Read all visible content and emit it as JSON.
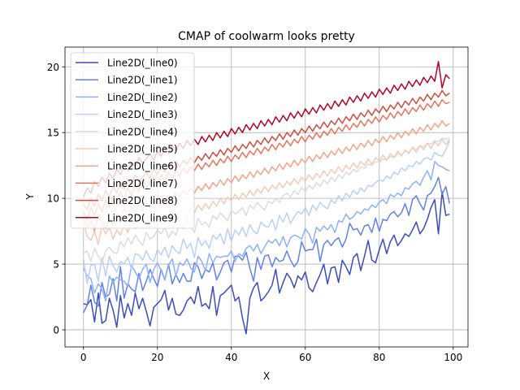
{
  "chart_data": {
    "type": "line",
    "title": "CMAP of coolwarm looks pretty",
    "xlabel": "X",
    "ylabel": "Y",
    "xlim": [
      -5,
      104
    ],
    "ylim": [
      -1.3,
      21.5
    ],
    "xticks": [
      0,
      20,
      40,
      60,
      80,
      100
    ],
    "yticks": [
      0,
      5,
      10,
      15,
      20
    ],
    "grid": true,
    "legend_position": "top-left",
    "x": [
      0,
      1,
      2,
      3,
      4,
      5,
      6,
      7,
      8,
      9,
      10,
      11,
      12,
      13,
      14,
      15,
      16,
      17,
      18,
      19,
      20,
      21,
      22,
      23,
      24,
      25,
      26,
      27,
      28,
      29,
      30,
      31,
      32,
      33,
      34,
      35,
      36,
      37,
      38,
      39,
      40,
      41,
      42,
      43,
      44,
      45,
      46,
      47,
      48,
      49,
      50,
      51,
      52,
      53,
      54,
      55,
      56,
      57,
      58,
      59,
      60,
      61,
      62,
      63,
      64,
      65,
      66,
      67,
      68,
      69,
      70,
      71,
      72,
      73,
      74,
      75,
      76,
      77,
      78,
      79,
      80,
      81,
      82,
      83,
      84,
      85,
      86,
      87,
      88,
      89,
      90,
      91,
      92,
      93,
      94,
      95,
      96,
      97,
      98,
      99
    ],
    "series": [
      {
        "name": "Line2D(_line0)",
        "color": "#3b4cc0",
        "values": [
          2.0,
          1.9,
          2.3,
          0.6,
          2.8,
          0.5,
          0.7,
          2.4,
          1.5,
          0.2,
          2.6,
          0.9,
          2.0,
          1.1,
          2.8,
          1.6,
          2.4,
          1.4,
          0.3,
          1.7,
          2.0,
          2.3,
          3.0,
          1.5,
          2.4,
          1.2,
          1.1,
          1.5,
          2.2,
          2.5,
          2.0,
          3.3,
          1.8,
          2.0,
          1.6,
          3.3,
          1.1,
          2.6,
          2.8,
          3.1,
          3.4,
          2.2,
          2.5,
          0.9,
          -0.3,
          2.4,
          3.2,
          3.6,
          2.2,
          2.5,
          2.9,
          3.4,
          4.6,
          2.8,
          3.6,
          4.3,
          3.9,
          3.2,
          4.1,
          3.8,
          4.4,
          3.2,
          2.9,
          3.6,
          4.2,
          5.0,
          3.5,
          4.7,
          4.8,
          3.6,
          5.3,
          4.8,
          4.2,
          5.5,
          5.8,
          4.5,
          5.6,
          6.8,
          5.3,
          5.1,
          6.1,
          6.9,
          5.8,
          6.7,
          7.2,
          6.4,
          6.8,
          7.3,
          7.1,
          7.6,
          8.2,
          7.3,
          7.7,
          8.4,
          9.3,
          9.9,
          7.3,
          10.5,
          8.7,
          8.8
        ]
      },
      {
        "name": "Line2D(_line1)",
        "color": "#6282ea",
        "values": [
          1.3,
          1.9,
          3.4,
          2.1,
          1.8,
          3.6,
          2.5,
          2.7,
          3.9,
          2.2,
          4.8,
          2.4,
          3.5,
          3.1,
          2.9,
          4.3,
          3.0,
          3.7,
          4.6,
          3.9,
          3.3,
          4.6,
          3.8,
          5.0,
          3.5,
          4.2,
          3.6,
          4.3,
          3.7,
          3.7,
          5.1,
          4.8,
          3.9,
          4.6,
          4.4,
          5.1,
          3.8,
          4.4,
          5.1,
          5.3,
          4.4,
          5.6,
          5.6,
          5.3,
          5.9,
          4.7,
          3.7,
          5.5,
          4.6,
          5.6,
          5.7,
          4.8,
          5.5,
          5.2,
          5.3,
          6.0,
          5.3,
          4.8,
          5.2,
          6.7,
          6.0,
          6.1,
          6.1,
          6.9,
          5.2,
          6.5,
          6.8,
          6.4,
          6.8,
          7.0,
          6.3,
          6.9,
          8.1,
          7.6,
          7.7,
          7.2,
          7.9,
          8.0,
          7.4,
          8.5,
          7.5,
          8.4,
          8.3,
          8.8,
          9.0,
          8.6,
          8.9,
          9.6,
          8.7,
          9.9,
          10.2,
          9.6,
          9.1,
          10.2,
          10.4,
          10.9,
          11.6,
          10.3,
          10.9,
          9.6
        ]
      },
      {
        "name": "Line2D(_line2)",
        "color": "#8db0fe",
        "values": [
          4.7,
          4.1,
          3.9,
          2.8,
          3.5,
          3.1,
          2.2,
          4.1,
          3.6,
          4.0,
          3.8,
          3.7,
          3.3,
          4.9,
          4.4,
          3.9,
          4.6,
          5.0,
          3.6,
          4.6,
          5.1,
          4.5,
          3.8,
          4.9,
          5.4,
          4.1,
          5.1,
          4.9,
          5.4,
          4.7,
          4.4,
          5.6,
          5.2,
          4.5,
          5.8,
          5.1,
          5.6,
          5.5,
          5.6,
          5.6,
          6.0,
          5.2,
          5.8,
          5.6,
          6.2,
          6.4,
          6.0,
          6.5,
          5.8,
          6.3,
          6.8,
          6.6,
          6.9,
          6.4,
          7.1,
          6.3,
          7.0,
          7.2,
          7.1,
          6.9,
          7.7,
          7.3,
          6.6,
          7.8,
          7.5,
          7.9,
          7.6,
          8.0,
          7.4,
          8.3,
          8.2,
          8.8,
          8.4,
          8.6,
          9.0,
          8.8,
          9.2,
          9.1,
          9.5,
          9.3,
          9.7,
          9.9,
          9.6,
          10.3,
          10.1,
          10.4,
          10.2,
          10.8,
          10.7,
          11.1,
          11.3,
          11.0,
          11.6,
          12.1,
          11.4,
          12.8,
          12.5,
          12.4,
          12.2,
          12.1
        ]
      },
      {
        "name": "Line2D(_line3)",
        "color": "#b8d0f9",
        "values": [
          5.4,
          3.5,
          4.9,
          5.0,
          3.7,
          5.5,
          4.1,
          5.6,
          4.9,
          4.4,
          5.2,
          5.0,
          5.5,
          4.6,
          5.8,
          5.7,
          5.3,
          6.0,
          5.4,
          5.2,
          6.1,
          5.7,
          6.3,
          5.5,
          6.4,
          6.0,
          5.8,
          6.9,
          6.2,
          6.6,
          5.5,
          7.0,
          6.4,
          6.8,
          6.2,
          7.2,
          6.9,
          7.3,
          6.5,
          7.7,
          6.7,
          7.6,
          7.2,
          7.8,
          7.1,
          8.0,
          7.5,
          7.3,
          8.2,
          7.9,
          7.8,
          8.4,
          7.6,
          8.7,
          8.2,
          8.9,
          8.1,
          8.6,
          9.0,
          8.8,
          9.3,
          8.7,
          9.5,
          9.1,
          9.7,
          9.4,
          9.2,
          9.9,
          9.6,
          10.2,
          9.8,
          10.4,
          10.1,
          10.6,
          10.3,
          10.8,
          10.5,
          11.0,
          10.9,
          11.2,
          11.4,
          11.3,
          11.7,
          11.5,
          12.0,
          11.8,
          12.3,
          12.1,
          12.5,
          12.4,
          12.8,
          12.6,
          13.0,
          13.1,
          12.9,
          13.5,
          13.3,
          13.2,
          13.7,
          14.4
        ]
      },
      {
        "name": "Line2D(_line4)",
        "color": "#dddcdc",
        "values": [
          5.8,
          6.0,
          5.2,
          6.2,
          5.6,
          5.1,
          6.0,
          6.3,
          5.9,
          5.8,
          6.7,
          6.3,
          7.0,
          6.5,
          7.2,
          6.8,
          6.4,
          7.4,
          6.9,
          7.1,
          7.6,
          7.3,
          7.8,
          7.0,
          7.5,
          7.2,
          8.1,
          7.7,
          8.3,
          7.9,
          7.4,
          8.5,
          8.0,
          8.2,
          7.8,
          8.7,
          8.4,
          8.9,
          8.6,
          8.3,
          9.1,
          8.8,
          9.0,
          9.3,
          8.7,
          9.5,
          9.2,
          9.7,
          9.4,
          9.1,
          9.8,
          9.6,
          10.0,
          9.7,
          10.2,
          10.4,
          10.1,
          10.6,
          10.3,
          10.8,
          10.5,
          11.0,
          10.7,
          11.2,
          10.9,
          11.4,
          11.1,
          11.6,
          11.3,
          11.8,
          11.5,
          12.0,
          11.8,
          12.2,
          12.0,
          12.4,
          12.3,
          12.6,
          12.5,
          12.8,
          12.7,
          13.0,
          12.9,
          13.2,
          13.1,
          13.4,
          13.3,
          13.6,
          13.5,
          13.8,
          13.7,
          14.0,
          13.9,
          14.2,
          14.1,
          14.4,
          14.3,
          14.6,
          14.5,
          14.6
        ]
      },
      {
        "name": "Line2D(_line5)",
        "color": "#f2cbb7",
        "values": [
          8.2,
          7.1,
          6.8,
          7.5,
          6.5,
          7.9,
          7.3,
          7.8,
          6.9,
          7.6,
          7.2,
          8.0,
          7.4,
          8.3,
          7.7,
          7.9,
          8.4,
          8.1,
          7.8,
          8.6,
          8.2,
          8.8,
          8.5,
          8.1,
          9.0,
          8.6,
          9.2,
          8.8,
          8.4,
          9.3,
          8.9,
          9.5,
          9.1,
          9.6,
          9.2,
          9.8,
          9.4,
          10.0,
          9.6,
          10.1,
          9.8,
          10.3,
          9.9,
          10.4,
          10.1,
          10.6,
          10.2,
          10.7,
          10.4,
          10.9,
          10.5,
          11.0,
          10.7,
          11.2,
          10.8,
          11.3,
          11.0,
          11.5,
          11.1,
          11.6,
          11.3,
          11.8,
          11.4,
          11.9,
          11.6,
          12.1,
          11.7,
          12.2,
          11.9,
          12.4,
          12.0,
          12.5,
          12.2,
          12.7,
          12.3,
          12.8,
          12.5,
          13.0,
          12.6,
          13.1,
          12.8,
          13.3,
          12.9,
          13.4,
          13.1,
          13.6,
          13.2,
          13.7,
          13.4,
          13.9,
          13.5,
          14.0,
          13.7,
          14.2,
          13.8,
          14.3,
          14.0,
          14.5,
          14.1,
          14.5
        ]
      },
      {
        "name": "Line2D(_line6)",
        "color": "#f6a385",
        "values": [
          8.6,
          7.8,
          8.3,
          7.5,
          8.8,
          8.1,
          7.7,
          8.5,
          8.0,
          8.9,
          8.4,
          9.2,
          8.7,
          9.4,
          8.9,
          9.6,
          9.1,
          9.8,
          9.3,
          10.0,
          9.5,
          10.2,
          9.7,
          10.3,
          9.9,
          10.5,
          10.1,
          10.6,
          10.3,
          10.8,
          10.4,
          10.9,
          10.6,
          11.1,
          10.7,
          11.2,
          10.9,
          11.4,
          11.0,
          11.5,
          11.2,
          11.7,
          11.3,
          11.8,
          11.5,
          12.0,
          11.6,
          12.1,
          11.8,
          12.3,
          11.9,
          12.4,
          12.1,
          12.6,
          12.2,
          12.7,
          12.4,
          12.9,
          12.5,
          13.0,
          12.7,
          13.2,
          12.8,
          13.3,
          13.0,
          13.5,
          13.1,
          13.6,
          13.3,
          13.8,
          13.4,
          13.9,
          13.6,
          14.1,
          13.7,
          14.2,
          13.9,
          14.4,
          14.0,
          14.5,
          14.2,
          14.7,
          14.3,
          14.8,
          14.5,
          15.0,
          14.6,
          15.1,
          14.8,
          15.3,
          14.9,
          15.4,
          15.1,
          15.6,
          15.2,
          15.7,
          15.4,
          15.9,
          15.5,
          15.7
        ]
      },
      {
        "name": "Line2D(_line7)",
        "color": "#e7745b",
        "values": [
          9.0,
          8.4,
          9.3,
          8.7,
          9.6,
          9.0,
          9.9,
          9.3,
          10.2,
          9.6,
          10.5,
          9.9,
          10.8,
          10.2,
          11.1,
          10.5,
          11.4,
          10.8,
          11.2,
          11.6,
          11.0,
          11.8,
          11.3,
          12.0,
          11.5,
          12.1,
          11.7,
          12.3,
          11.9,
          12.4,
          12.1,
          12.6,
          12.2,
          12.7,
          12.4,
          12.9,
          12.5,
          13.0,
          12.7,
          13.2,
          12.8,
          13.3,
          13.0,
          13.5,
          13.1,
          13.6,
          13.3,
          13.8,
          13.4,
          13.9,
          13.6,
          14.1,
          13.7,
          14.2,
          13.9,
          14.4,
          14.0,
          14.5,
          14.2,
          14.7,
          14.3,
          14.8,
          14.5,
          15.0,
          14.6,
          15.1,
          14.8,
          15.3,
          14.9,
          15.4,
          15.1,
          15.6,
          15.2,
          15.7,
          15.4,
          15.9,
          15.5,
          16.0,
          15.7,
          16.2,
          15.8,
          16.3,
          16.0,
          16.5,
          16.1,
          16.6,
          16.3,
          16.8,
          16.4,
          16.9,
          16.6,
          17.1,
          16.7,
          17.2,
          16.9,
          17.4,
          17.0,
          17.5,
          17.2,
          17.3
        ]
      },
      {
        "name": "Line2D(_line8)",
        "color": "#d24b40",
        "values": [
          9.5,
          9.2,
          10.0,
          9.4,
          10.3,
          9.8,
          10.6,
          10.1,
          10.9,
          10.4,
          11.2,
          10.7,
          11.5,
          11.0,
          11.8,
          11.3,
          11.6,
          12.0,
          11.5,
          12.2,
          11.8,
          12.4,
          12.0,
          12.6,
          12.2,
          12.8,
          12.4,
          12.9,
          12.6,
          13.1,
          12.7,
          13.2,
          12.9,
          13.4,
          13.0,
          13.5,
          13.2,
          13.7,
          13.3,
          13.8,
          13.5,
          14.0,
          13.6,
          14.1,
          13.8,
          14.3,
          13.9,
          14.4,
          14.1,
          14.6,
          14.2,
          14.7,
          14.4,
          14.9,
          14.5,
          15.0,
          14.7,
          15.2,
          14.8,
          15.3,
          15.0,
          15.5,
          15.1,
          15.6,
          15.3,
          15.8,
          15.4,
          15.9,
          15.6,
          16.1,
          15.7,
          16.2,
          15.9,
          16.4,
          16.0,
          16.5,
          16.2,
          16.7,
          16.3,
          16.8,
          16.5,
          17.0,
          16.6,
          17.1,
          16.8,
          17.3,
          16.9,
          17.4,
          17.1,
          17.6,
          17.2,
          17.7,
          17.4,
          17.9,
          17.5,
          18.0,
          17.7,
          18.2,
          17.8,
          18.0
        ]
      },
      {
        "name": "Line2D(_line9)",
        "color": "#b40426",
        "values": [
          10.1,
          10.8,
          10.4,
          11.3,
          10.9,
          11.6,
          11.2,
          11.9,
          11.5,
          12.2,
          11.8,
          12.5,
          12.1,
          12.8,
          12.4,
          13.1,
          12.7,
          13.0,
          13.4,
          12.9,
          13.6,
          13.2,
          13.8,
          13.4,
          14.0,
          13.6,
          14.2,
          13.8,
          14.4,
          14.0,
          14.5,
          14.1,
          14.7,
          14.3,
          14.8,
          14.4,
          15.0,
          14.6,
          15.1,
          14.7,
          15.3,
          14.9,
          15.4,
          15.0,
          15.6,
          15.2,
          15.7,
          15.3,
          15.9,
          15.5,
          16.0,
          15.6,
          16.2,
          15.8,
          16.3,
          15.9,
          16.5,
          16.1,
          16.6,
          16.2,
          16.8,
          16.4,
          16.9,
          16.5,
          17.1,
          16.7,
          17.2,
          16.8,
          17.4,
          17.0,
          17.5,
          17.1,
          17.7,
          17.3,
          17.8,
          17.4,
          18.0,
          17.6,
          18.1,
          17.7,
          18.3,
          17.9,
          18.4,
          18.0,
          18.6,
          18.2,
          18.7,
          18.3,
          18.9,
          18.5,
          19.0,
          18.6,
          19.2,
          18.8,
          19.3,
          18.9,
          20.4,
          18.4,
          19.4,
          19.1
        ]
      }
    ]
  }
}
